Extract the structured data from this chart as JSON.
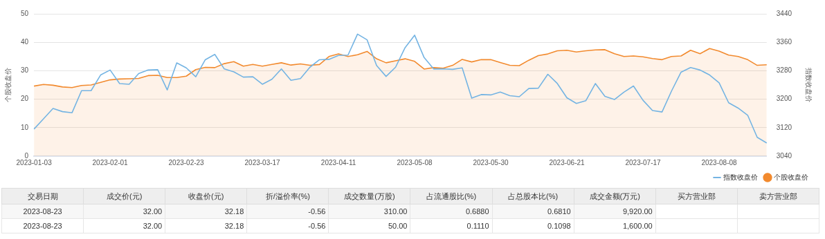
{
  "chart_data": [
    {
      "type": "line",
      "categories": [
        "2023-01-03",
        null,
        null,
        null,
        null,
        null,
        null,
        null,
        "2023-02-01",
        null,
        null,
        null,
        null,
        null,
        null,
        null,
        "2023-02-23",
        null,
        null,
        null,
        null,
        null,
        null,
        null,
        "2023-03-17",
        null,
        null,
        null,
        null,
        null,
        null,
        null,
        "2023-04-11",
        null,
        null,
        null,
        null,
        null,
        null,
        null,
        "2023-05-08",
        null,
        null,
        null,
        null,
        null,
        null,
        null,
        "2023-05-30",
        null,
        null,
        null,
        null,
        null,
        null,
        null,
        "2023-06-21",
        null,
        null,
        null,
        null,
        null,
        null,
        null,
        "2023-07-17",
        null,
        null,
        null,
        null,
        null,
        null,
        null,
        "2023-08-08",
        null,
        null,
        null,
        null,
        null
      ],
      "series": [
        {
          "name": "指数收盘价",
          "axis": "y2",
          "color": "#74b4e3",
          "values": [
            3116,
            3145,
            3174,
            3165,
            3162,
            3224,
            3224,
            3268,
            3282,
            3244,
            3242,
            3272,
            3282,
            3283,
            3226,
            3302,
            3288,
            3263,
            3311,
            3326,
            3285,
            3277,
            3262,
            3263,
            3242,
            3256,
            3285,
            3253,
            3258,
            3290,
            3311,
            3312,
            3323,
            3324,
            3383,
            3367,
            3295,
            3264,
            3290,
            3345,
            3380,
            3317,
            3285,
            3285,
            3284,
            3288,
            3203,
            3213,
            3212,
            3220,
            3210,
            3207,
            3230,
            3231,
            3270,
            3244,
            3204,
            3188,
            3196,
            3244,
            3208,
            3199,
            3220,
            3237,
            3197,
            3168,
            3164,
            3223,
            3276,
            3289,
            3282,
            3268,
            3246,
            3190,
            3175,
            3155,
            3093,
            3077
          ]
        },
        {
          "name": "个股收盘价",
          "type": "area",
          "color": "#f28a2e",
          "values": [
            24.6,
            25.2,
            24.9,
            24.3,
            24.1,
            24.8,
            25.0,
            25.9,
            26.8,
            27.1,
            27.2,
            27.3,
            28.3,
            28.4,
            27.6,
            27.6,
            28.1,
            30.4,
            31.2,
            31.1,
            32.5,
            33.2,
            31.6,
            32.2,
            31.6,
            32.2,
            32.8,
            32.0,
            32.4,
            31.9,
            32.2,
            35.0,
            35.9,
            35.0,
            35.6,
            36.8,
            34.2,
            32.8,
            33.5,
            34.2,
            33.3,
            30.6,
            31.1,
            30.9,
            31.9,
            34.0,
            33.1,
            33.9,
            33.9,
            32.9,
            31.9,
            31.8,
            33.7,
            35.3,
            35.9,
            37.0,
            37.2,
            36.6,
            37.0,
            37.3,
            37.4,
            36.0,
            35.0,
            35.2,
            34.9,
            34.3,
            33.9,
            35.0,
            35.2,
            37.2,
            36.0,
            37.8,
            36.9,
            35.5,
            35.0,
            33.9,
            31.9,
            32.1
          ]
        }
      ],
      "ylabel": "个股收盘价",
      "y2label": "指数收盘价",
      "ylim": [
        0,
        50
      ],
      "yticks": [
        0,
        10,
        20,
        30,
        40,
        50
      ],
      "y2lim": [
        3040,
        3440
      ],
      "y2ticks": [
        3040,
        3120,
        3200,
        3280,
        3360,
        3440
      ],
      "grid": "y",
      "legend": "bottom",
      "marker": "none"
    },
    {
      "type": "other",
      "categories": [
        "交易日期",
        "成交价(元)",
        "收盘价(元)",
        "折/溢价率(%)",
        "成交数量(万股)",
        "占流通股比(%)",
        "占总股本比(%)",
        "成交金额(万元)",
        "买方营业部",
        "卖方营业部"
      ],
      "cells": [
        [
          "2023-08-23",
          "32.00",
          "32.18",
          "-0.56",
          "310.00",
          "0.6880",
          "0.6810",
          "9,920.00",
          null,
          null
        ],
        [
          "2023-08-23",
          "32.00",
          "32.18",
          "-0.56",
          "50.00",
          "0.1110",
          "0.1098",
          "1,600.00",
          null,
          null
        ]
      ]
    }
  ]
}
